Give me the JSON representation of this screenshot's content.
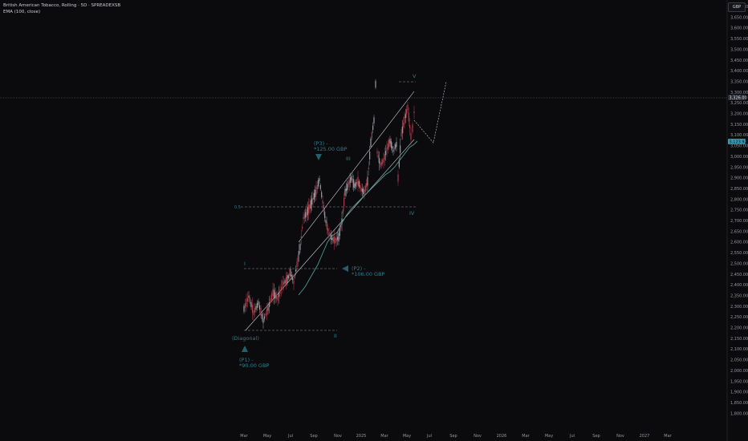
{
  "legend": {
    "symbol_line": "British American Tobacco, Rolling · 5D · SPREADEXSB",
    "indicator_line": "EMA (100, close)"
  },
  "currency": "GBP",
  "price_axis": {
    "min": 1800,
    "max": 3700,
    "step": 50,
    "labels": [
      "3,700.00",
      "3,650.00",
      "3,600.00",
      "3,550.00",
      "3,500.00",
      "3,450.00",
      "3,400.00",
      "3,350.00",
      "3,300.00",
      "3,250.00",
      "3,200.00",
      "3,150.00",
      "3,100.00",
      "3,050.00",
      "3,000.00",
      "2,950.00",
      "2,900.00",
      "2,850.00",
      "2,800.00",
      "2,750.00",
      "2,700.00",
      "2,650.00",
      "2,600.00",
      "2,550.00",
      "2,500.00",
      "2,450.00",
      "2,400.00",
      "2,350.00",
      "2,300.00",
      "2,250.00",
      "2,200.00",
      "2,150.00",
      "2,100.00",
      "2,050.00",
      "2,000.00",
      "1,950.00",
      "1,900.00",
      "1,850.00",
      "1,800.00"
    ],
    "current_price_label": "3,326.00",
    "current_price": 3326,
    "ema_price_label": "3,123.92",
    "ema_price": 3123.92
  },
  "time_axis": {
    "labels": [
      "Mar",
      "May",
      "Jul",
      "Sep",
      "Nov",
      "2025",
      "Mar",
      "May",
      "Jul",
      "Sep",
      "Nov",
      "2026",
      "Mar",
      "May",
      "Jul",
      "Sep",
      "Nov",
      "2027",
      "Mar"
    ]
  },
  "annotations": {
    "wave_1": "I",
    "wave_2": "II",
    "wave_3": "III",
    "wave_4": "IV",
    "wave_5": "V",
    "level_label": "0.5",
    "diagonal": "(Diagonal)",
    "p1_line1": "(P1) -",
    "p1_line2": "*90.00 GBP",
    "p2_line1": "(P2) -",
    "p2_line2": "*106.00 GBP",
    "p3_line1": "(P3) -",
    "p3_line2": "*125.00 GBP"
  },
  "colors": {
    "background": "#0b0b0d",
    "candle_down": "#b23a48",
    "candle_up": "#9a9ca3",
    "ema": "#4e9a8c",
    "annotation": "#2e7d8c",
    "ema_tag": "#2f9bb8"
  }
}
